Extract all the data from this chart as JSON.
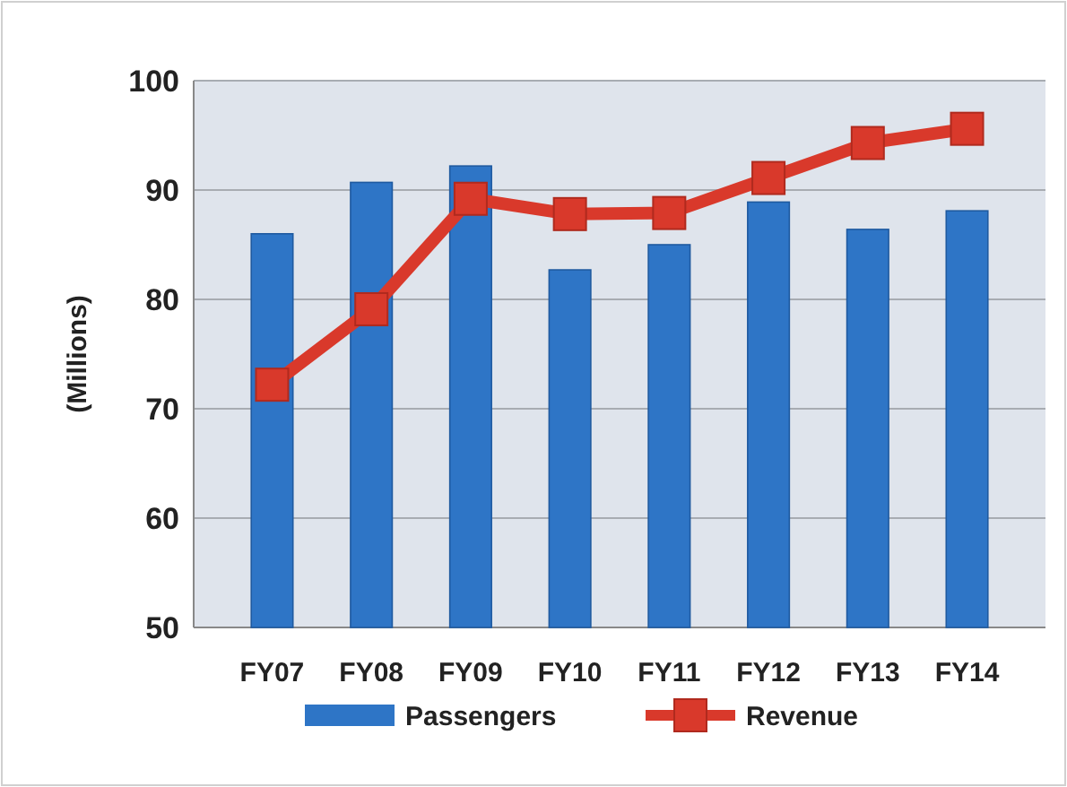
{
  "chart_data": {
    "type": "bar",
    "ylabel": "(Millions)",
    "categories": [
      "FY07",
      "FY08",
      "FY09",
      "FY10",
      "FY11",
      "FY12",
      "FY13",
      "FY14"
    ],
    "series": [
      {
        "name": "Passengers",
        "color": "#2e75c6",
        "values": [
          86.0,
          90.7,
          92.2,
          82.7,
          85.0,
          88.9,
          86.4,
          88.1
        ]
      },
      {
        "name": "Revenue",
        "type": "line",
        "color": "#d9392b",
        "marker": "square",
        "values": [
          72.2,
          79.1,
          89.2,
          87.8,
          87.9,
          91.1,
          94.3,
          95.6
        ]
      }
    ],
    "ylim": [
      50,
      100
    ],
    "yticks": [
      50,
      60,
      70,
      80,
      90,
      100
    ],
    "grid": "y",
    "legend": "bottom"
  }
}
